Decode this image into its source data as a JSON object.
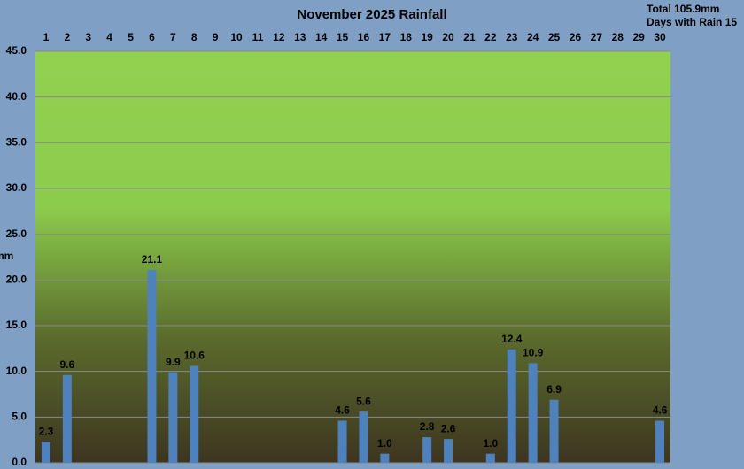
{
  "chart_data": {
    "type": "bar",
    "title": "November 2025 Rainfall",
    "annotations": [
      "Total 105.9mm",
      "Days with Rain 15"
    ],
    "y_label": "mm",
    "categories": [
      "1",
      "2",
      "3",
      "4",
      "5",
      "6",
      "7",
      "8",
      "9",
      "10",
      "11",
      "12",
      "13",
      "14",
      "15",
      "16",
      "17",
      "18",
      "19",
      "20",
      "21",
      "22",
      "23",
      "24",
      "25",
      "26",
      "27",
      "28",
      "29",
      "30"
    ],
    "values": [
      2.3,
      9.6,
      0,
      0,
      0,
      21.1,
      9.9,
      10.6,
      0,
      0,
      0,
      0,
      0,
      0,
      4.6,
      5.6,
      1.0,
      0,
      2.8,
      2.6,
      0,
      1.0,
      12.4,
      10.9,
      6.9,
      0,
      0,
      0,
      0,
      4.6
    ],
    "value_labels": [
      "2.3",
      "9.6",
      null,
      null,
      null,
      "21.1",
      "9.9",
      "10.6",
      null,
      null,
      null,
      null,
      null,
      null,
      "4.6",
      "5.6",
      "1.0",
      null,
      "2.8",
      "2.6",
      null,
      "1.0",
      "12.4",
      "10.9",
      "6.9",
      null,
      null,
      null,
      null,
      "4.6"
    ],
    "color": "#4f81bd",
    "ylim": [
      0,
      45
    ],
    "yticks": [
      {
        "value": 0,
        "label": "0.0"
      },
      {
        "value": 5,
        "label": "5.0"
      },
      {
        "value": 10,
        "label": "10.0"
      },
      {
        "value": 15,
        "label": "15.0"
      },
      {
        "value": 20,
        "label": "20.0"
      },
      {
        "value": 25,
        "label": "25.0"
      },
      {
        "value": 30,
        "label": "30.0"
      },
      {
        "value": 35,
        "label": "35.0"
      },
      {
        "value": 40,
        "label": "40.0"
      },
      {
        "value": 45,
        "label": "45.0"
      }
    ],
    "grid": true
  }
}
